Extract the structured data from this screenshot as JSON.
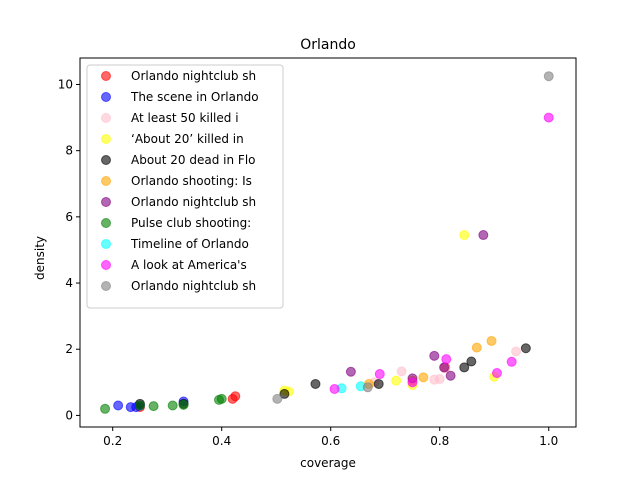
{
  "chart_data": {
    "type": "scatter",
    "title": "Orlando",
    "xlabel": "coverage",
    "ylabel": "density",
    "xlim": [
      0.14,
      1.05
    ],
    "ylim": [
      -0.35,
      10.8
    ],
    "xticks": [
      0.2,
      0.4,
      0.6,
      0.8,
      1.0
    ],
    "xtick_labels": [
      "0.2",
      "0.4",
      "0.6",
      "0.8",
      "1.0"
    ],
    "yticks": [
      0,
      2,
      4,
      6,
      8,
      10
    ],
    "ytick_labels": [
      "0",
      "2",
      "4",
      "6",
      "8",
      "10"
    ],
    "grid": false,
    "legend_position": "top-left",
    "marker_opacity": 0.6,
    "series": [
      {
        "name": "Orlando nightclub sh",
        "color": "#ff0000",
        "points": [
          [
            0.25,
            0.25
          ],
          [
            0.42,
            0.5
          ],
          [
            0.425,
            0.58
          ],
          [
            0.81,
            1.45
          ]
        ]
      },
      {
        "name": "The scene in Orlando",
        "color": "#0000ff",
        "points": [
          [
            0.21,
            0.3
          ],
          [
            0.233,
            0.25
          ],
          [
            0.243,
            0.25
          ],
          [
            0.25,
            0.3
          ],
          [
            0.33,
            0.42
          ]
        ]
      },
      {
        "name": "At least 50 killed i",
        "color": "#ffc0cb",
        "points": [
          [
            0.68,
            1.0
          ],
          [
            0.73,
            1.33
          ],
          [
            0.79,
            1.08
          ],
          [
            0.8,
            1.1
          ],
          [
            0.81,
            1.42
          ],
          [
            0.94,
            1.93
          ]
        ]
      },
      {
        "name": "‘About 20’ killed in",
        "color": "#ffff00",
        "points": [
          [
            0.515,
            0.75
          ],
          [
            0.523,
            0.72
          ],
          [
            0.72,
            1.05
          ],
          [
            0.75,
            0.92
          ],
          [
            0.845,
            5.45
          ],
          [
            0.9,
            1.17
          ]
        ]
      },
      {
        "name": "About 20 dead in Flo",
        "color": "#000000",
        "points": [
          [
            0.25,
            0.35
          ],
          [
            0.33,
            0.35
          ],
          [
            0.515,
            0.65
          ],
          [
            0.572,
            0.95
          ],
          [
            0.688,
            0.95
          ],
          [
            0.845,
            1.45
          ],
          [
            0.858,
            1.63
          ],
          [
            0.958,
            2.03
          ]
        ]
      },
      {
        "name": "Orlando shooting: Is",
        "color": "#ffa500",
        "points": [
          [
            0.67,
            0.95
          ],
          [
            0.75,
            1.05
          ],
          [
            0.77,
            1.15
          ],
          [
            0.868,
            2.05
          ],
          [
            0.895,
            2.25
          ]
        ]
      },
      {
        "name": "Orlando nightclub sh",
        "color": "#800080",
        "points": [
          [
            0.637,
            1.32
          ],
          [
            0.75,
            1.12
          ],
          [
            0.79,
            1.8
          ],
          [
            0.808,
            1.45
          ],
          [
            0.82,
            1.2
          ],
          [
            0.88,
            5.45
          ]
        ]
      },
      {
        "name": "Pulse club shooting:",
        "color": "#008000",
        "points": [
          [
            0.186,
            0.2
          ],
          [
            0.25,
            0.3
          ],
          [
            0.275,
            0.28
          ],
          [
            0.31,
            0.3
          ],
          [
            0.33,
            0.32
          ],
          [
            0.395,
            0.47
          ],
          [
            0.4,
            0.5
          ]
        ]
      },
      {
        "name": "Timeline of Orlando",
        "color": "#00ffff",
        "points": [
          [
            0.62,
            0.82
          ],
          [
            0.655,
            0.88
          ]
        ]
      },
      {
        "name": "A look at America's",
        "color": "#ff00ff",
        "points": [
          [
            0.607,
            0.8
          ],
          [
            0.69,
            1.25
          ],
          [
            0.75,
            1.0
          ],
          [
            0.812,
            1.7
          ],
          [
            0.905,
            1.28
          ],
          [
            0.932,
            1.62
          ],
          [
            1.0,
            9.0
          ]
        ]
      },
      {
        "name": "Orlando nightclub sh",
        "color": "#808080",
        "points": [
          [
            0.502,
            0.5
          ],
          [
            0.668,
            0.85
          ],
          [
            1.0,
            10.25
          ]
        ]
      }
    ]
  }
}
